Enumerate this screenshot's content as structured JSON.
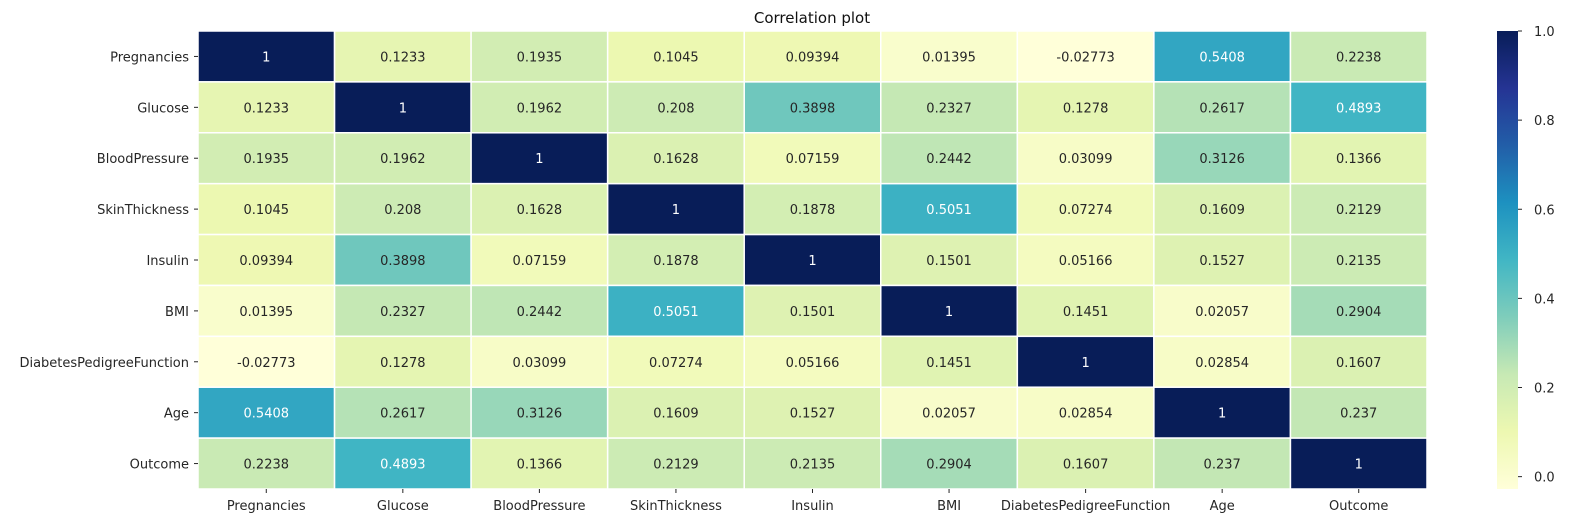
{
  "chart_data": {
    "type": "heatmap",
    "title": "Correlation plot",
    "xlabel": "",
    "ylabel": "",
    "x_categories": [
      "Pregnancies",
      "Glucose",
      "BloodPressure",
      "SkinThickness",
      "Insulin",
      "BMI",
      "DiabetesPedigreeFunction",
      "Age",
      "Outcome"
    ],
    "y_categories": [
      "Pregnancies",
      "Glucose",
      "BloodPressure",
      "SkinThickness",
      "Insulin",
      "BMI",
      "DiabetesPedigreeFunction",
      "Age",
      "Outcome"
    ],
    "values": [
      [
        1,
        0.1233,
        0.1935,
        0.1045,
        0.09394,
        0.01395,
        -0.02773,
        0.5408,
        0.2238
      ],
      [
        0.1233,
        1,
        0.1962,
        0.208,
        0.3898,
        0.2327,
        0.1278,
        0.2617,
        0.4893
      ],
      [
        0.1935,
        0.1962,
        1,
        0.1628,
        0.07159,
        0.2442,
        0.03099,
        0.3126,
        0.1366
      ],
      [
        0.1045,
        0.208,
        0.1628,
        1,
        0.1878,
        0.5051,
        0.07274,
        0.1609,
        0.2129
      ],
      [
        0.09394,
        0.3898,
        0.07159,
        0.1878,
        1,
        0.1501,
        0.05166,
        0.1527,
        0.2135
      ],
      [
        0.01395,
        0.2327,
        0.2442,
        0.5051,
        0.1501,
        1,
        0.1451,
        0.02057,
        0.2904
      ],
      [
        -0.02773,
        0.1278,
        0.03099,
        0.07274,
        0.05166,
        0.1451,
        1,
        0.02854,
        0.1607
      ],
      [
        0.5408,
        0.2617,
        0.3126,
        0.1609,
        0.1527,
        0.02057,
        0.02854,
        1,
        0.237
      ],
      [
        0.2238,
        0.4893,
        0.1366,
        0.2129,
        0.2135,
        0.2904,
        0.1607,
        0.237,
        1
      ]
    ],
    "value_labels": [
      [
        "1",
        "0.1233",
        "0.1935",
        "0.1045",
        "0.09394",
        "0.01395",
        "-0.02773",
        "0.5408",
        "0.2238"
      ],
      [
        "0.1233",
        "1",
        "0.1962",
        "0.208",
        "0.3898",
        "0.2327",
        "0.1278",
        "0.2617",
        "0.4893"
      ],
      [
        "0.1935",
        "0.1962",
        "1",
        "0.1628",
        "0.07159",
        "0.2442",
        "0.03099",
        "0.3126",
        "0.1366"
      ],
      [
        "0.1045",
        "0.208",
        "0.1628",
        "1",
        "0.1878",
        "0.5051",
        "0.07274",
        "0.1609",
        "0.2129"
      ],
      [
        "0.09394",
        "0.3898",
        "0.07159",
        "0.1878",
        "1",
        "0.1501",
        "0.05166",
        "0.1527",
        "0.2135"
      ],
      [
        "0.01395",
        "0.2327",
        "0.2442",
        "0.5051",
        "0.1501",
        "1",
        "0.1451",
        "0.02057",
        "0.2904"
      ],
      [
        "-0.02773",
        "0.1278",
        "0.03099",
        "0.07274",
        "0.05166",
        "0.1451",
        "1",
        "0.02854",
        "0.1607"
      ],
      [
        "0.5408",
        "0.2617",
        "0.3126",
        "0.1609",
        "0.1527",
        "0.02057",
        "0.02854",
        "1",
        "0.237"
      ],
      [
        "0.2238",
        "0.4893",
        "0.1366",
        "0.2129",
        "0.2135",
        "0.2904",
        "0.1607",
        "0.237",
        "1"
      ]
    ],
    "colorbar": {
      "colormap": "YlGnBu",
      "vmin": -0.02773,
      "vmax": 1,
      "ticks": [
        0.0,
        0.2,
        0.4,
        0.6,
        0.8,
        1.0
      ],
      "tick_labels": [
        "0.0",
        "0.2",
        "0.4",
        "0.6",
        "0.8",
        "1.0"
      ]
    },
    "grid": true,
    "legend": "colorbar-right"
  },
  "colors": {
    "cell_border": "#ffffff",
    "text_dark": "#262626",
    "text_light": "#ffffff",
    "colormap_stops": [
      "#ffffd9",
      "#edf8b1",
      "#c7e9b4",
      "#7fcdbb",
      "#41b6c4",
      "#1d91c0",
      "#225ea8",
      "#253494",
      "#081d58"
    ]
  }
}
